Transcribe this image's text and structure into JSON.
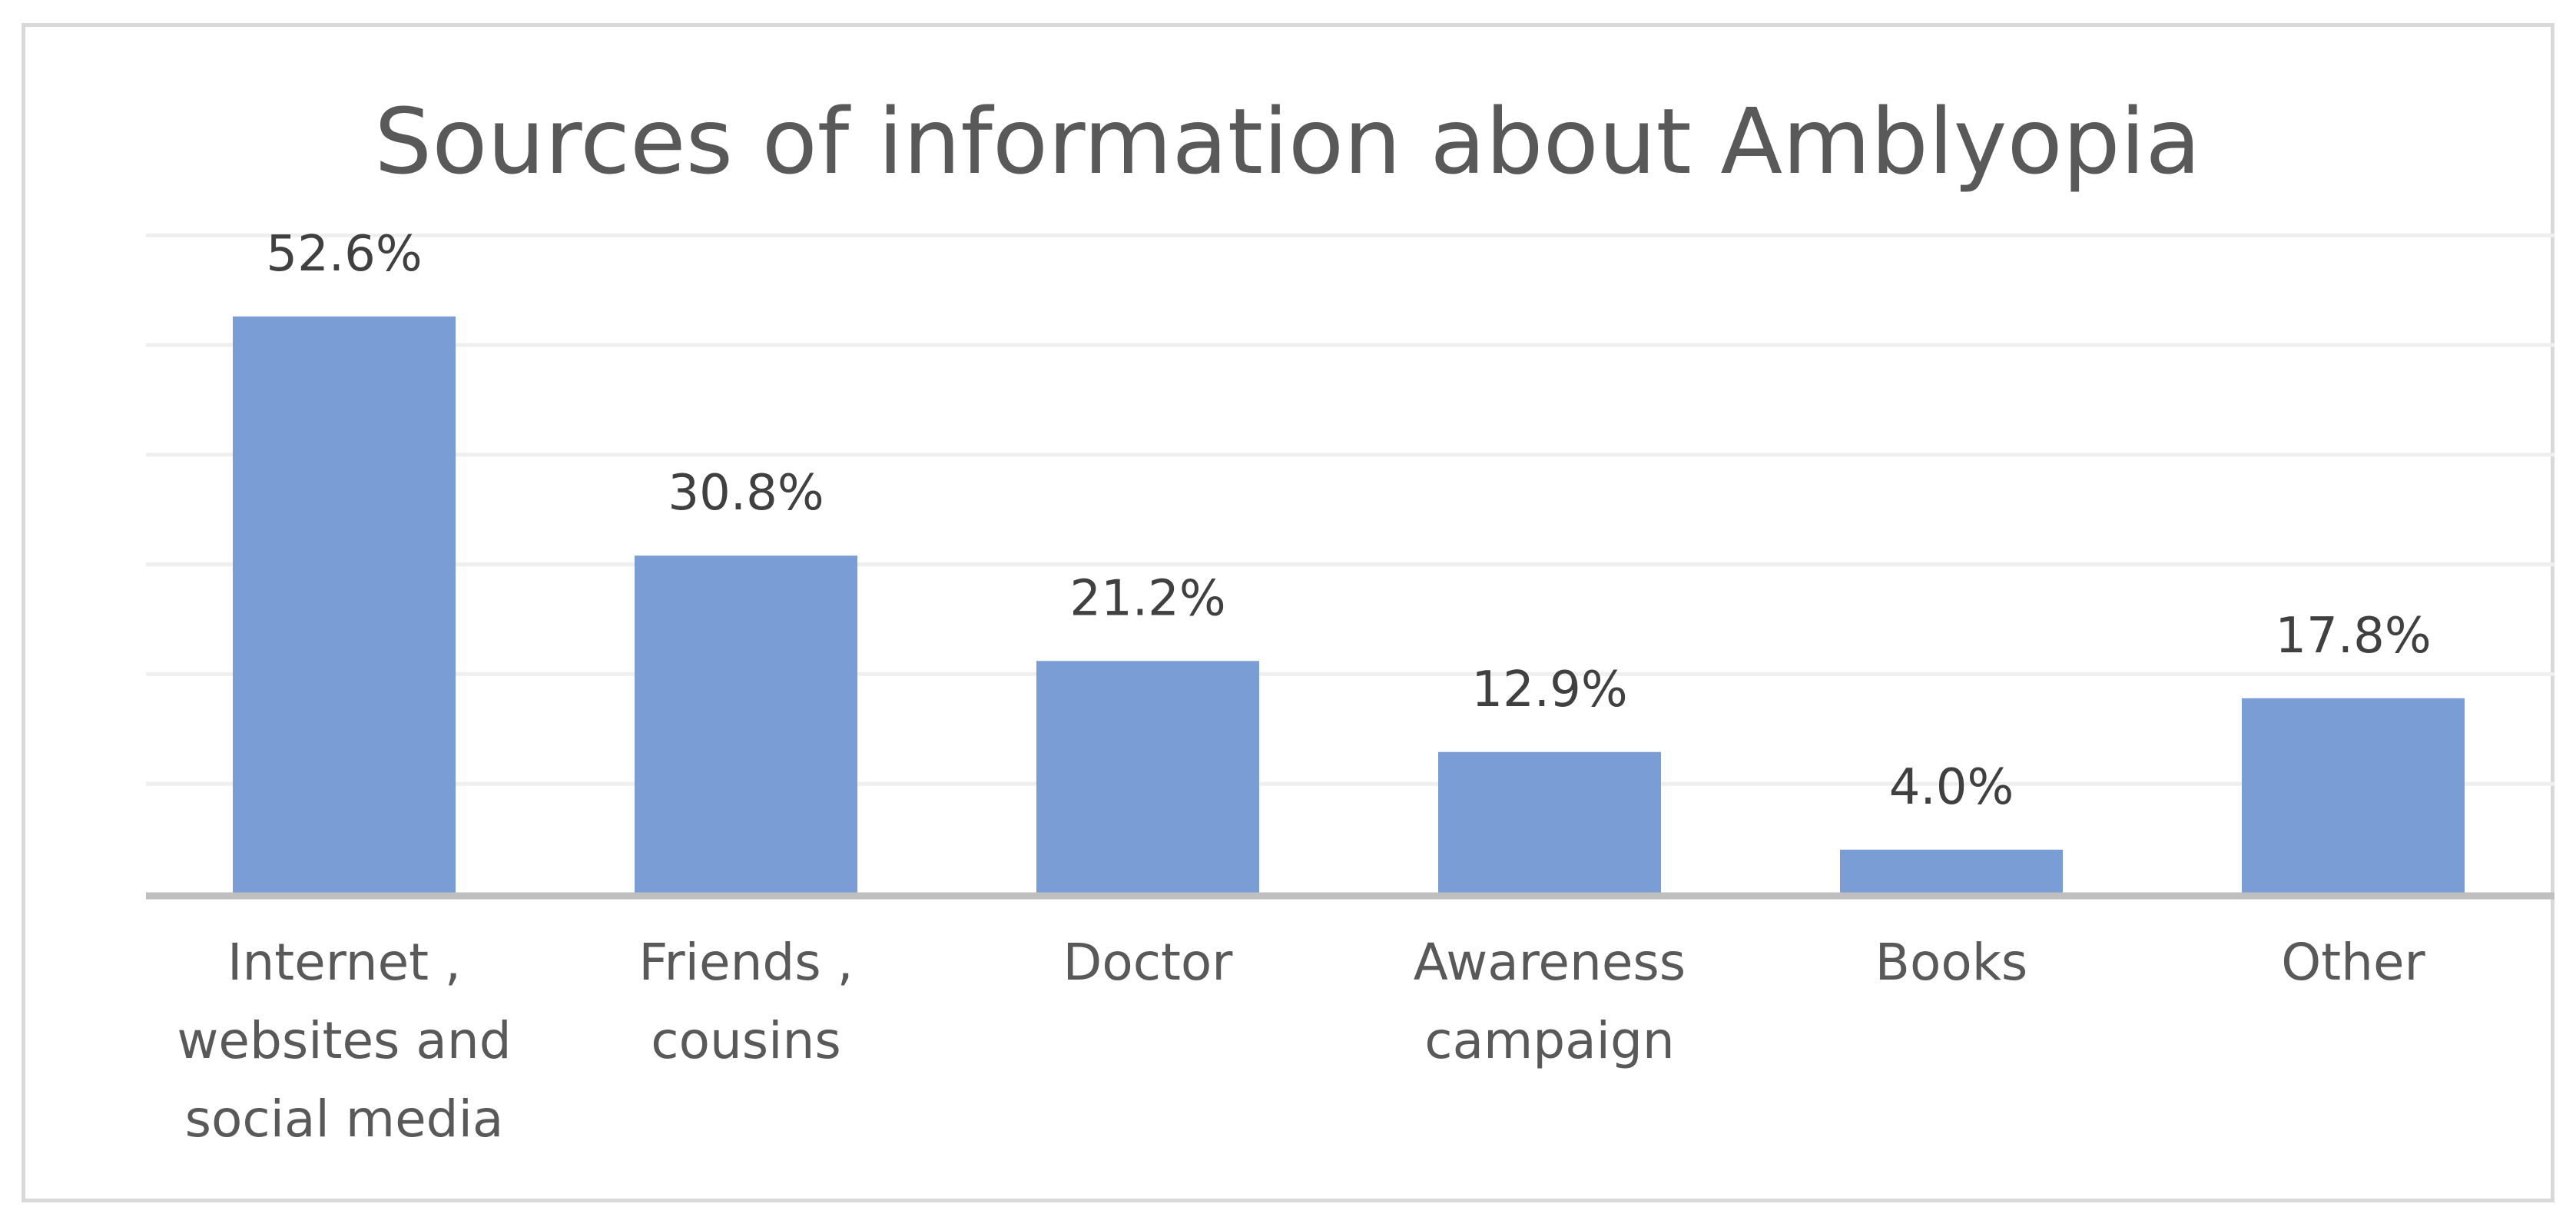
{
  "chart_data": {
    "type": "bar",
    "title": "Sources of information about Amblyopia",
    "xlabel": "",
    "ylabel": "",
    "categories": [
      [
        "Internet ,",
        "websites and",
        "social media"
      ],
      [
        "Friends ,",
        "cousins"
      ],
      [
        "Doctor"
      ],
      [
        "Awareness",
        "campaign"
      ],
      [
        "Books"
      ],
      [
        "Other"
      ]
    ],
    "values": [
      52.6,
      30.8,
      21.2,
      12.9,
      4.0,
      17.8
    ],
    "data_labels": [
      "52.6%",
      "30.8%",
      "21.2%",
      "12.9%",
      "4.0%",
      "17.8%"
    ],
    "ylim": [
      0,
      60
    ],
    "gridlines": [
      10,
      20,
      30,
      40,
      50,
      60
    ],
    "grid": true,
    "legend": "none",
    "colors": {
      "bar": "#7b9dd5",
      "grid": "#efefef",
      "axis": "#bfbfbf",
      "frame": "#d9d9d9"
    }
  }
}
